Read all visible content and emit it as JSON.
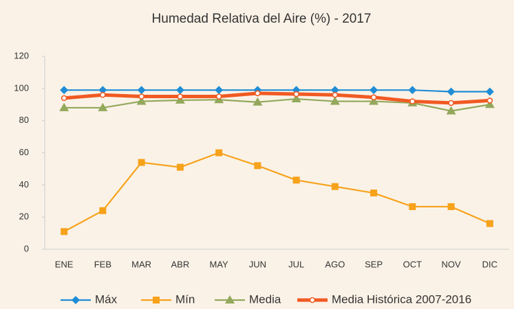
{
  "chart_data": {
    "type": "line",
    "title": "Humedad Relativa del Aire  (%) - 2017",
    "categories": [
      "ENE",
      "FEB",
      "MAR",
      "ABR",
      "MAY",
      "JUN",
      "JUL",
      "AGO",
      "SEP",
      "OCT",
      "NOV",
      "DIC"
    ],
    "series": [
      {
        "name": "Máx",
        "color": "#1f8dd6",
        "marker": "diamond",
        "values": [
          99,
          99,
          99,
          99,
          99,
          99,
          99,
          99,
          99,
          99,
          98,
          98
        ]
      },
      {
        "name": "Mín",
        "color": "#f7a21b",
        "marker": "square",
        "values": [
          11,
          24,
          54,
          51,
          60,
          52,
          43,
          39,
          35,
          26.5,
          26.5,
          16
        ]
      },
      {
        "name": "Media",
        "color": "#93a85b",
        "marker": "triangle",
        "values": [
          88,
          88,
          92,
          92.7,
          93,
          91.5,
          93.5,
          92,
          92,
          91,
          86,
          90
        ]
      },
      {
        "name": "Media Histórica 2007-2016",
        "color": "#f05a23",
        "marker": "circle",
        "values": [
          94,
          96,
          95,
          95,
          95,
          97,
          96.5,
          96,
          94.5,
          92,
          91,
          92.5
        ]
      }
    ],
    "ylim": [
      0,
      120
    ],
    "yticks": [
      0,
      20,
      40,
      60,
      80,
      100,
      120
    ],
    "grid": false,
    "legend": "bottom"
  }
}
